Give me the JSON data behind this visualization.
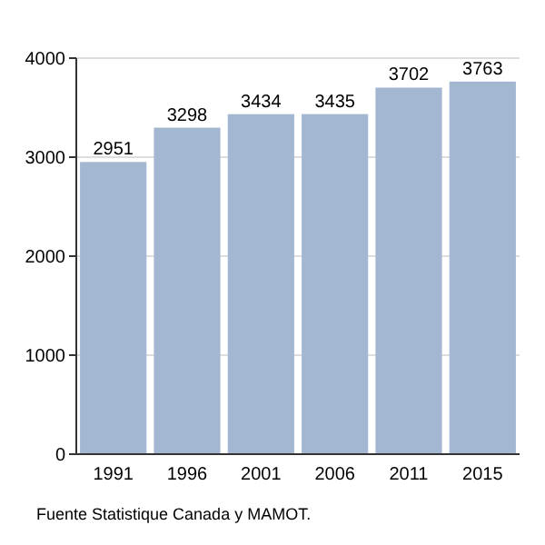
{
  "chart_data": {
    "type": "bar",
    "categories": [
      "1991",
      "1996",
      "2001",
      "2006",
      "2011",
      "2015"
    ],
    "values": [
      2951,
      3298,
      3434,
      3435,
      3702,
      3763
    ],
    "color": "#a3b8d0",
    "data_labels": true,
    "ylim": [
      0,
      4000
    ],
    "yticks": [
      0,
      1000,
      2000,
      3000,
      4000
    ],
    "grid": "y",
    "annotations": [
      "Fuente Statistique Canada y MAMOT."
    ]
  }
}
